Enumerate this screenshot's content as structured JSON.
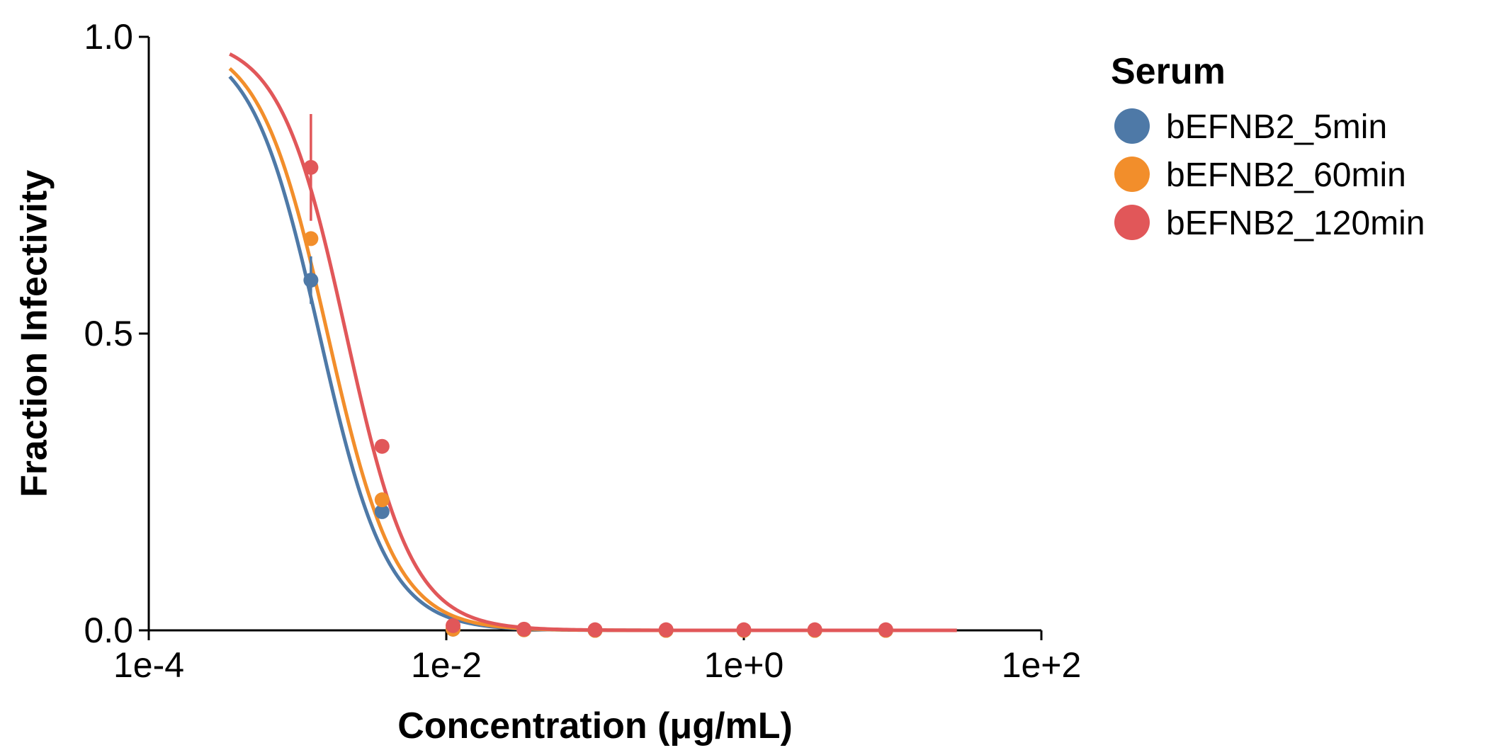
{
  "chart_data": {
    "type": "line",
    "xlabel": "Concentration (μg/mL)",
    "ylabel": "Fraction Infectivity",
    "xscale": "log",
    "xlim": [
      0.0001,
      100
    ],
    "ylim": [
      0,
      1
    ],
    "x_ticks": [
      0.0001,
      0.01,
      1,
      100
    ],
    "x_tick_labels": [
      "1e-4",
      "1e-2",
      "1e+0",
      "1e+2"
    ],
    "y_ticks": [
      0,
      0.5,
      1
    ],
    "y_tick_labels": [
      "0.0",
      "0.5",
      "1.0"
    ],
    "grid": false,
    "legend": {
      "title": "Serum",
      "placement": "right"
    },
    "series": [
      {
        "name": "bEFNB2_5min",
        "color": "#4e79a7",
        "points": [
          {
            "x": 0.00123,
            "y": 0.59,
            "err": 0.04
          },
          {
            "x": 0.0037,
            "y": 0.2
          },
          {
            "x": 0.0111,
            "y": 0.002
          },
          {
            "x": 0.0333,
            "y": 0.001
          },
          {
            "x": 0.1,
            "y": 0.0
          },
          {
            "x": 0.3,
            "y": 0.0
          },
          {
            "x": 1.0,
            "y": 0.0
          },
          {
            "x": 3.0,
            "y": 0.0
          },
          {
            "x": 9.0,
            "y": 0.0
          }
        ],
        "fit": {
          "ic50": 0.0014,
          "hill": 1.9,
          "x_range": [
            0.00035,
            27
          ]
        }
      },
      {
        "name": "bEFNB2_60min",
        "color": "#f28e2b",
        "points": [
          {
            "x": 0.00123,
            "y": 0.66
          },
          {
            "x": 0.0037,
            "y": 0.22
          },
          {
            "x": 0.0111,
            "y": 0.002
          },
          {
            "x": 0.0333,
            "y": 0.001
          },
          {
            "x": 0.1,
            "y": 0.0
          },
          {
            "x": 0.3,
            "y": 0.0
          },
          {
            "x": 1.0,
            "y": 0.0
          },
          {
            "x": 3.0,
            "y": 0.0
          },
          {
            "x": 9.0,
            "y": 0.0
          }
        ],
        "fit": {
          "ic50": 0.00159,
          "hill": 1.9,
          "x_range": [
            0.00035,
            27
          ]
        }
      },
      {
        "name": "bEFNB2_120min",
        "color": "#e15759",
        "points": [
          {
            "x": 0.00123,
            "y": 0.78,
            "err": 0.09
          },
          {
            "x": 0.0037,
            "y": 0.31
          },
          {
            "x": 0.0111,
            "y": 0.008
          },
          {
            "x": 0.0333,
            "y": 0.002
          },
          {
            "x": 0.1,
            "y": 0.001
          },
          {
            "x": 0.3,
            "y": 0.001
          },
          {
            "x": 1.0,
            "y": 0.001
          },
          {
            "x": 3.0,
            "y": 0.001
          },
          {
            "x": 9.0,
            "y": 0.001
          }
        ],
        "fit": {
          "ic50": 0.00212,
          "hill": 1.95,
          "x_range": [
            0.00035,
            27
          ]
        }
      }
    ]
  }
}
